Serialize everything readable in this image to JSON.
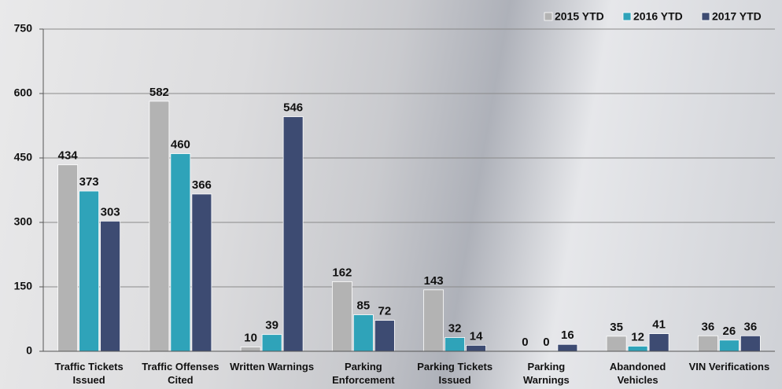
{
  "chart_data": {
    "type": "bar",
    "categories": [
      "Traffic Tickets Issued",
      "Traffic Offenses Cited",
      "Written Warnings",
      "Parking Enforcement",
      "Parking Tickets Issued",
      "Parking Warnings",
      "Abandoned Vehicles",
      "VIN Verifications"
    ],
    "series": [
      {
        "name": "2015 YTD",
        "color": "#b3b3b3",
        "values": [
          434,
          582,
          10,
          162,
          143,
          0,
          35,
          36
        ]
      },
      {
        "name": "2016 YTD",
        "color": "#2fa3b9",
        "values": [
          373,
          460,
          39,
          85,
          32,
          0,
          12,
          26
        ]
      },
      {
        "name": "2017 YTD",
        "color": "#3d4b72",
        "values": [
          303,
          366,
          546,
          72,
          14,
          16,
          41,
          36
        ]
      }
    ],
    "ylim": [
      0,
      750
    ],
    "yticks": [
      0,
      150,
      300,
      450,
      600,
      750
    ],
    "grid": true,
    "legend": "top-right"
  }
}
